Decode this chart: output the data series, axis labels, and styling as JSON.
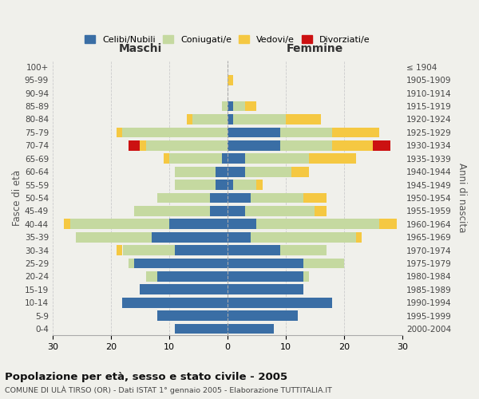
{
  "age_groups": [
    "0-4",
    "5-9",
    "10-14",
    "15-19",
    "20-24",
    "25-29",
    "30-34",
    "35-39",
    "40-44",
    "45-49",
    "50-54",
    "55-59",
    "60-64",
    "65-69",
    "70-74",
    "75-79",
    "80-84",
    "85-89",
    "90-94",
    "95-99",
    "100+"
  ],
  "birth_years": [
    "2000-2004",
    "1995-1999",
    "1990-1994",
    "1985-1989",
    "1980-1984",
    "1975-1979",
    "1970-1974",
    "1965-1969",
    "1960-1964",
    "1955-1959",
    "1950-1954",
    "1945-1949",
    "1940-1944",
    "1935-1939",
    "1930-1934",
    "1925-1929",
    "1920-1924",
    "1915-1919",
    "1910-1914",
    "1905-1909",
    "≤ 1904"
  ],
  "colors": {
    "celibi": "#3a6ea5",
    "coniugati": "#c5d9a0",
    "vedovi": "#f5c842",
    "divorziati": "#cc1111"
  },
  "maschi": {
    "celibi": [
      9,
      12,
      18,
      15,
      12,
      16,
      9,
      13,
      10,
      3,
      3,
      2,
      2,
      1,
      0,
      0,
      0,
      0,
      0,
      0,
      0
    ],
    "coniugati": [
      0,
      0,
      0,
      0,
      2,
      1,
      9,
      13,
      17,
      13,
      9,
      7,
      7,
      9,
      14,
      18,
      6,
      1,
      0,
      0,
      0
    ],
    "vedovi": [
      0,
      0,
      0,
      0,
      0,
      0,
      1,
      0,
      1,
      0,
      0,
      0,
      0,
      1,
      1,
      1,
      1,
      0,
      0,
      0,
      0
    ],
    "divorziati": [
      0,
      0,
      0,
      0,
      0,
      0,
      0,
      0,
      0,
      0,
      0,
      0,
      0,
      0,
      2,
      0,
      0,
      0,
      0,
      0,
      0
    ]
  },
  "femmine": {
    "celibi": [
      8,
      12,
      18,
      13,
      13,
      13,
      9,
      4,
      5,
      3,
      4,
      1,
      3,
      3,
      9,
      9,
      1,
      1,
      0,
      0,
      0
    ],
    "coniugati": [
      0,
      0,
      0,
      0,
      1,
      7,
      8,
      18,
      21,
      12,
      9,
      4,
      8,
      11,
      9,
      9,
      9,
      2,
      0,
      0,
      0
    ],
    "vedovi": [
      0,
      0,
      0,
      0,
      0,
      0,
      0,
      1,
      3,
      2,
      4,
      1,
      3,
      8,
      7,
      8,
      6,
      2,
      0,
      1,
      0
    ],
    "divorziati": [
      0,
      0,
      0,
      0,
      0,
      0,
      0,
      0,
      0,
      0,
      0,
      0,
      0,
      0,
      3,
      0,
      0,
      0,
      0,
      0,
      0
    ]
  },
  "title": "Popolazione per età, sesso e stato civile - 2005",
  "subtitle": "COMUNE DI ULÀ TIRSO (OR) - Dati ISTAT 1° gennaio 2005 - Elaborazione TUTTITALIA.IT",
  "xlabel_left": "Maschi",
  "xlabel_right": "Femmine",
  "ylabel_left": "Fasce di età",
  "ylabel_right": "Anni di nascita",
  "xlim": 30,
  "bg_color": "#f0f0eb",
  "grid_color": "#cccccc",
  "legend_labels": [
    "Celibi/Nubili",
    "Coniugati/e",
    "Vedovi/e",
    "Divorziati/e"
  ]
}
